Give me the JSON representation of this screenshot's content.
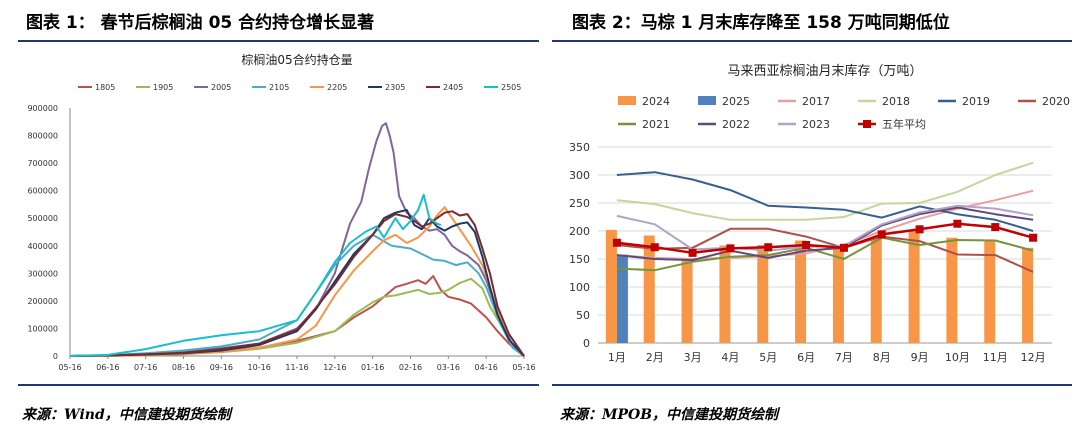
{
  "left_header": "图表 1：  春节后棕榈油 05 合约持仓增长显著",
  "right_header": "图表 2：马棕 1 月末库存降至 158 万吨同期低位",
  "left_source": "来源：Wind，中信建投期货绘制",
  "right_source": "来源：MPOB，中信建投期货绘制",
  "chart_data": [
    {
      "type": "line",
      "title": "棕榈油05合约持仓量",
      "xlabel": "",
      "ylabel": "",
      "x_ticks": [
        "05-16",
        "06-16",
        "07-16",
        "08-16",
        "09-16",
        "10-16",
        "11-16",
        "12-16",
        "01-16",
        "02-16",
        "03-16",
        "04-16",
        "05-16"
      ],
      "ylim": [
        0,
        900000
      ],
      "y_ticks": [
        "0",
        "100000",
        "200000",
        "300000",
        "400000",
        "500000",
        "600000",
        "700000",
        "800000",
        "900000"
      ],
      "legend_position": "top",
      "series": [
        {
          "name": "1805",
          "color": "#c0504d",
          "points": [
            [
              0,
              0
            ],
            [
              1,
              1000
            ],
            [
              2,
              4000
            ],
            [
              3,
              9000
            ],
            [
              4,
              17000
            ],
            [
              5,
              30000
            ],
            [
              6,
              55000
            ],
            [
              7,
              90000
            ],
            [
              7.5,
              140000
            ],
            [
              8,
              180000
            ],
            [
              8.3,
              215000
            ],
            [
              8.6,
              250000
            ],
            [
              8.9,
              262000
            ],
            [
              9.2,
              275000
            ],
            [
              9.4,
              262000
            ],
            [
              9.6,
              290000
            ],
            [
              9.8,
              240000
            ],
            [
              10,
              215000
            ],
            [
              10.3,
              205000
            ],
            [
              10.6,
              190000
            ],
            [
              11,
              140000
            ],
            [
              11.3,
              90000
            ],
            [
              11.6,
              45000
            ],
            [
              11.9,
              10000
            ],
            [
              12,
              0
            ]
          ]
        },
        {
          "name": "1905",
          "color": "#9bbb59",
          "points": [
            [
              0,
              0
            ],
            [
              1,
              1000
            ],
            [
              2,
              3000
            ],
            [
              3,
              7000
            ],
            [
              4,
              14000
            ],
            [
              5,
              26000
            ],
            [
              6,
              48000
            ],
            [
              7,
              90000
            ],
            [
              7.5,
              150000
            ],
            [
              8,
              195000
            ],
            [
              8.3,
              215000
            ],
            [
              8.6,
              220000
            ],
            [
              8.9,
              230000
            ],
            [
              9.2,
              240000
            ],
            [
              9.5,
              225000
            ],
            [
              9.8,
              230000
            ],
            [
              10,
              240000
            ],
            [
              10.3,
              265000
            ],
            [
              10.6,
              280000
            ],
            [
              10.9,
              245000
            ],
            [
              11.1,
              180000
            ],
            [
              11.4,
              110000
            ],
            [
              11.7,
              40000
            ],
            [
              12,
              0
            ]
          ]
        },
        {
          "name": "2005",
          "color": "#8064a2",
          "points": [
            [
              0,
              0
            ],
            [
              1,
              2000
            ],
            [
              2,
              6000
            ],
            [
              3,
              15000
            ],
            [
              4,
              28000
            ],
            [
              5,
              45000
            ],
            [
              6,
              100000
            ],
            [
              6.5,
              170000
            ],
            [
              7,
              300000
            ],
            [
              7.4,
              480000
            ],
            [
              7.7,
              560000
            ],
            [
              7.9,
              680000
            ],
            [
              8.1,
              780000
            ],
            [
              8.25,
              835000
            ],
            [
              8.35,
              845000
            ],
            [
              8.45,
              800000
            ],
            [
              8.55,
              740000
            ],
            [
              8.7,
              580000
            ],
            [
              8.9,
              520000
            ],
            [
              9.1,
              500000
            ],
            [
              9.3,
              470000
            ],
            [
              9.5,
              455000
            ],
            [
              9.7,
              460000
            ],
            [
              9.9,
              440000
            ],
            [
              10.1,
              400000
            ],
            [
              10.3,
              380000
            ],
            [
              10.5,
              365000
            ],
            [
              10.8,
              330000
            ],
            [
              11,
              275000
            ],
            [
              11.2,
              200000
            ],
            [
              11.4,
              120000
            ],
            [
              11.7,
              40000
            ],
            [
              12,
              0
            ]
          ]
        },
        {
          "name": "2105",
          "color": "#4bacc6",
          "points": [
            [
              0,
              0
            ],
            [
              1,
              3000
            ],
            [
              2,
              10000
            ],
            [
              3,
              20000
            ],
            [
              4,
              35000
            ],
            [
              5,
              60000
            ],
            [
              6,
              130000
            ],
            [
              6.5,
              230000
            ],
            [
              7,
              330000
            ],
            [
              7.5,
              400000
            ],
            [
              8,
              440000
            ],
            [
              8.5,
              400000
            ],
            [
              9,
              390000
            ],
            [
              9.3,
              370000
            ],
            [
              9.6,
              350000
            ],
            [
              9.9,
              345000
            ],
            [
              10.2,
              330000
            ],
            [
              10.5,
              340000
            ],
            [
              10.8,
              300000
            ],
            [
              11,
              250000
            ],
            [
              11.2,
              180000
            ],
            [
              11.4,
              110000
            ],
            [
              11.7,
              30000
            ],
            [
              12,
              0
            ]
          ]
        },
        {
          "name": "2205",
          "color": "#f79646",
          "points": [
            [
              0,
              0
            ],
            [
              1,
              0
            ],
            [
              2,
              2000
            ],
            [
              3,
              6000
            ],
            [
              4,
              15000
            ],
            [
              5,
              30000
            ],
            [
              6,
              60000
            ],
            [
              6.5,
              110000
            ],
            [
              7,
              220000
            ],
            [
              7.5,
              310000
            ],
            [
              8,
              380000
            ],
            [
              8.3,
              420000
            ],
            [
              8.6,
              440000
            ],
            [
              8.9,
              410000
            ],
            [
              9.2,
              430000
            ],
            [
              9.5,
              470000
            ],
            [
              9.7,
              510000
            ],
            [
              9.9,
              540000
            ],
            [
              10.1,
              500000
            ],
            [
              10.3,
              460000
            ],
            [
              10.6,
              400000
            ],
            [
              10.9,
              330000
            ],
            [
              11.1,
              250000
            ],
            [
              11.3,
              160000
            ],
            [
              11.6,
              60000
            ],
            [
              12,
              0
            ]
          ]
        },
        {
          "name": "2305",
          "color": "#1f3864",
          "points": [
            [
              0,
              0
            ],
            [
              1,
              2000
            ],
            [
              2,
              5000
            ],
            [
              3,
              10000
            ],
            [
              4,
              20000
            ],
            [
              5,
              40000
            ],
            [
              6,
              90000
            ],
            [
              6.5,
              170000
            ],
            [
              7,
              270000
            ],
            [
              7.5,
              370000
            ],
            [
              8,
              440000
            ],
            [
              8.3,
              500000
            ],
            [
              8.6,
              520000
            ],
            [
              8.9,
              530000
            ],
            [
              9.1,
              475000
            ],
            [
              9.3,
              460000
            ],
            [
              9.5,
              500000
            ],
            [
              9.7,
              470000
            ],
            [
              9.9,
              455000
            ],
            [
              10.1,
              470000
            ],
            [
              10.3,
              480000
            ],
            [
              10.5,
              485000
            ],
            [
              10.7,
              450000
            ],
            [
              10.9,
              360000
            ],
            [
              11.1,
              250000
            ],
            [
              11.3,
              150000
            ],
            [
              11.6,
              60000
            ],
            [
              12,
              0
            ]
          ]
        },
        {
          "name": "2405",
          "color": "#7a2a2a",
          "points": [
            [
              0,
              0
            ],
            [
              1,
              2000
            ],
            [
              2,
              6000
            ],
            [
              3,
              12000
            ],
            [
              4,
              25000
            ],
            [
              5,
              45000
            ],
            [
              6,
              95000
            ],
            [
              6.5,
              175000
            ],
            [
              7,
              260000
            ],
            [
              7.5,
              360000
            ],
            [
              8,
              440000
            ],
            [
              8.3,
              490000
            ],
            [
              8.6,
              515000
            ],
            [
              8.9,
              505000
            ],
            [
              9.1,
              490000
            ],
            [
              9.3,
              470000
            ],
            [
              9.5,
              480000
            ],
            [
              9.7,
              500000
            ],
            [
              9.9,
              520000
            ],
            [
              10.1,
              525000
            ],
            [
              10.3,
              510000
            ],
            [
              10.5,
              515000
            ],
            [
              10.7,
              475000
            ],
            [
              10.9,
              390000
            ],
            [
              11.1,
              300000
            ],
            [
              11.3,
              180000
            ],
            [
              11.6,
              80000
            ],
            [
              12,
              0
            ]
          ]
        },
        {
          "name": "2505",
          "color": "#17becf",
          "points": [
            [
              0,
              0
            ],
            [
              1,
              4000
            ],
            [
              2,
              25000
            ],
            [
              3,
              55000
            ],
            [
              4,
              75000
            ],
            [
              5,
              90000
            ],
            [
              6,
              130000
            ],
            [
              6.5,
              230000
            ],
            [
              7,
              340000
            ],
            [
              7.4,
              410000
            ],
            [
              7.8,
              450000
            ],
            [
              8.1,
              470000
            ],
            [
              8.3,
              430000
            ],
            [
              8.6,
              500000
            ],
            [
              8.8,
              460000
            ],
            [
              9,
              490000
            ],
            [
              9.2,
              530000
            ],
            [
              9.35,
              585000
            ],
            [
              9.5,
              500000
            ],
            [
              9.7,
              480000
            ],
            [
              9.8,
              475000
            ]
          ]
        }
      ]
    },
    {
      "type": "bar+line",
      "title": "马来西亚棕榈油月末库存（万吨）",
      "xlabel": "",
      "ylabel": "",
      "categories": [
        "1月",
        "2月",
        "3月",
        "4月",
        "5月",
        "6月",
        "7月",
        "8月",
        "9月",
        "10月",
        "11月",
        "12月"
      ],
      "ylim": [
        0,
        350
      ],
      "y_ticks": [
        "0",
        "50",
        "100",
        "150",
        "200",
        "250",
        "300",
        "350"
      ],
      "legend_position": "top",
      "bars": [
        {
          "name": "2024",
          "color": "#f79646",
          "values": [
            202,
            192,
            147,
            174,
            175,
            183,
            173,
            188,
            200,
            188,
            184,
            170
          ]
        },
        {
          "name": "2025",
          "color": "#4f81bd",
          "values": [
            158
          ]
        }
      ],
      "lines": [
        {
          "name": "2017",
          "color": "#e6a0a0",
          "values": [
            157,
            152,
            150,
            152,
            155,
            160,
            175,
            200,
            222,
            240,
            255,
            272
          ]
        },
        {
          "name": "2018",
          "color": "#c4d79b",
          "values": [
            255,
            248,
            232,
            220,
            220,
            220,
            225,
            249,
            250,
            270,
            300,
            322
          ]
        },
        {
          "name": "2019",
          "color": "#366092",
          "values": [
            300,
            305,
            292,
            273,
            245,
            242,
            238,
            224,
            244,
            230,
            220,
            200
          ]
        },
        {
          "name": "2020",
          "color": "#b0504a",
          "values": [
            175,
            168,
            170,
            204,
            204,
            190,
            170,
            190,
            182,
            158,
            157,
            127
          ]
        },
        {
          "name": "2021",
          "color": "#77933c",
          "values": [
            133,
            130,
            145,
            154,
            157,
            170,
            150,
            188,
            175,
            184,
            183,
            165
          ]
        },
        {
          "name": "2022",
          "color": "#604a7b",
          "values": [
            157,
            150,
            148,
            165,
            152,
            165,
            170,
            210,
            230,
            242,
            230,
            220
          ]
        },
        {
          "name": "2023",
          "color": "#b3a2c7",
          "values": [
            227,
            212,
            167,
            170,
            165,
            172,
            173,
            212,
            233,
            245,
            240,
            228
          ]
        },
        {
          "name": "五年平均",
          "color": "#c00000",
          "marker": "square",
          "values": [
            179,
            171,
            161,
            169,
            171,
            175,
            170,
            194,
            203,
            213,
            207,
            188
          ]
        }
      ]
    }
  ]
}
